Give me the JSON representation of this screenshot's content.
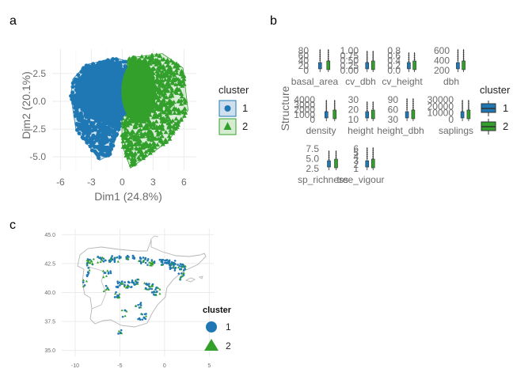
{
  "colors": {
    "cluster1": "#1f78b4",
    "cluster2": "#33a02c",
    "map_border": "#b5b5b5"
  },
  "panel_a": {
    "label": "a",
    "chart_data": {
      "type": "scatter",
      "xlabel": "Dim1 (24.8%)",
      "ylabel": "Dim2 (20.1%)",
      "xlim": [
        -6.8,
        7.2
      ],
      "ylim": [
        -6.2,
        4.7
      ],
      "xticks": [
        "-6",
        "-3",
        "0",
        "3",
        "6"
      ],
      "yticks": [
        "2.5",
        "0.0",
        "-2.5",
        "-5.0"
      ],
      "legend": {
        "title": "cluster",
        "items": [
          "1",
          "2"
        ],
        "placement": "right"
      },
      "series": [
        {
          "name": "1",
          "hull": [
            [
              -4.8,
              2.0
            ],
            [
              -3.5,
              3.3
            ],
            [
              -0.6,
              3.9
            ],
            [
              0.5,
              3.6
            ],
            [
              0.1,
              -1.5
            ],
            [
              -1.2,
              -4.8
            ],
            [
              -2.2,
              -5.3
            ],
            [
              -4.5,
              -2.5
            ],
            [
              -5.0,
              0.5
            ]
          ]
        },
        {
          "name": "2",
          "hull": [
            [
              0.6,
              3.9
            ],
            [
              3.9,
              4.3
            ],
            [
              5.9,
              3.0
            ],
            [
              6.4,
              -0.8
            ],
            [
              4.5,
              -3.6
            ],
            [
              0.8,
              -6.0
            ],
            [
              0.0,
              -4.0
            ],
            [
              -0.1,
              0.4
            ]
          ]
        }
      ]
    }
  },
  "panel_b": {
    "label": "b",
    "chart_data": {
      "type": "boxplot",
      "ylabel": "Structure",
      "legend": {
        "title": "cluster",
        "items": [
          "1",
          "2"
        ],
        "placement": "right"
      },
      "facets": [
        {
          "name": "basal_area",
          "ticks": [
            "80",
            "60",
            "40",
            "20",
            "0"
          ]
        },
        {
          "name": "cv_dbh",
          "ticks": [
            "1.00",
            "0.75",
            "0.50",
            "0.25",
            "0.00"
          ]
        },
        {
          "name": "cv_height",
          "ticks": [
            "0.8",
            "0.6",
            "0.4",
            "0.2",
            "0.0"
          ]
        },
        {
          "name": "dbh",
          "ticks": [
            "600",
            "400",
            "200"
          ]
        },
        {
          "name": "density",
          "ticks": [
            "4000",
            "3000",
            "2000",
            "1000",
            "0"
          ]
        },
        {
          "name": "height",
          "ticks": [
            "30",
            "20",
            "10"
          ]
        },
        {
          "name": "height_dbh",
          "ticks": [
            "90",
            "60",
            "30"
          ]
        },
        {
          "name": "saplings",
          "ticks": [
            "30000",
            "20000",
            "10000",
            "0"
          ]
        },
        {
          "name": "sp_richness",
          "ticks": [
            "7.5",
            "5.0",
            "2.5"
          ]
        },
        {
          "name": "tree_vigour",
          "ticks": [
            "6",
            "5",
            "4",
            "3",
            "2",
            "1"
          ]
        }
      ]
    }
  },
  "panel_c": {
    "label": "c",
    "chart_data": {
      "type": "map",
      "xticks": [
        "-10",
        "-5",
        "0",
        "5"
      ],
      "yticks": [
        "45.0",
        "42.5",
        "40.0",
        "37.5",
        "35.0"
      ],
      "xlim": [
        -11.5,
        5.5
      ],
      "ylim": [
        34.5,
        45.5
      ],
      "legend": {
        "title": "cluster",
        "items": [
          "1",
          "2"
        ],
        "placement": "right"
      }
    }
  }
}
